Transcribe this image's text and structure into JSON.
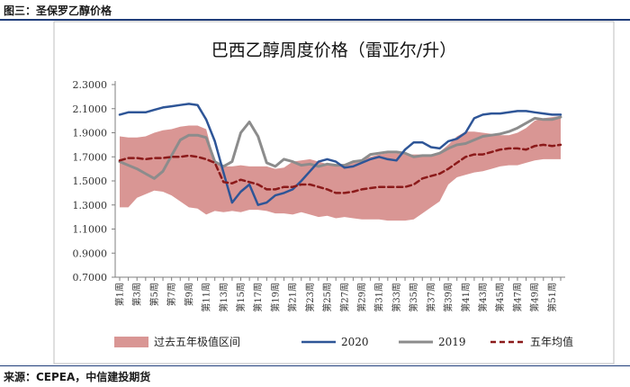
{
  "figure_caption": "图三：圣保罗乙醇价格",
  "source": "来源：CEPEA，中信建投期货",
  "colors": {
    "band": "#d99694",
    "s2020": "#2e5597",
    "s2019": "#8c8c8c",
    "avg": "#8b1a1a",
    "rule": "#1f3d7a"
  },
  "chart_data": {
    "type": "line",
    "title": "巴西乙醇周度价格（雷亚尔/升）",
    "ylim": [
      0.7,
      2.3
    ],
    "yticks": [
      "0.7000",
      "0.9000",
      "1.1000",
      "1.3000",
      "1.5000",
      "1.7000",
      "1.9000",
      "2.1000",
      "2.3000"
    ],
    "ytick_values": [
      0.7,
      0.9,
      1.1,
      1.3,
      1.5,
      1.7,
      1.9,
      2.1,
      2.3
    ],
    "x": [
      1,
      2,
      3,
      4,
      5,
      6,
      7,
      8,
      9,
      10,
      11,
      12,
      13,
      14,
      15,
      16,
      17,
      18,
      19,
      20,
      21,
      22,
      23,
      24,
      25,
      26,
      27,
      28,
      29,
      30,
      31,
      32,
      33,
      34,
      35,
      36,
      37,
      38,
      39,
      40,
      41,
      42,
      43,
      44,
      45,
      46,
      47,
      48,
      49,
      50,
      51,
      52
    ],
    "x_tick_labels": [
      "第1周",
      "第3周",
      "第5周",
      "第7周",
      "第9周",
      "第11周",
      "第13周",
      "第15周",
      "第17周",
      "第19周",
      "第21周",
      "第23周",
      "第25周",
      "第27周",
      "第29周",
      "第31周",
      "第33周",
      "第35周",
      "第37周",
      "第39周",
      "第41周",
      "第43周",
      "第45周",
      "第47周",
      "第49周",
      "第51周"
    ],
    "band": {
      "name": "过去五年极值区间",
      "upper": [
        1.87,
        1.86,
        1.86,
        1.87,
        1.9,
        1.92,
        1.93,
        1.95,
        1.96,
        1.96,
        1.93,
        1.66,
        1.62,
        1.62,
        1.63,
        1.62,
        1.62,
        1.62,
        1.6,
        1.61,
        1.66,
        1.67,
        1.68,
        1.66,
        1.64,
        1.63,
        1.64,
        1.66,
        1.68,
        1.7,
        1.72,
        1.73,
        1.73,
        1.72,
        1.72,
        1.72,
        1.72,
        1.74,
        1.8,
        1.87,
        1.91,
        1.91,
        1.9,
        1.89,
        1.88,
        1.88,
        1.9,
        1.94,
        2.0,
        2.02,
        2.03,
        2.04
      ],
      "lower": [
        1.28,
        1.28,
        1.36,
        1.39,
        1.42,
        1.41,
        1.38,
        1.33,
        1.28,
        1.27,
        1.22,
        1.25,
        1.24,
        1.25,
        1.24,
        1.26,
        1.26,
        1.25,
        1.23,
        1.23,
        1.22,
        1.24,
        1.22,
        1.2,
        1.21,
        1.19,
        1.2,
        1.19,
        1.18,
        1.18,
        1.18,
        1.17,
        1.17,
        1.17,
        1.18,
        1.23,
        1.28,
        1.33,
        1.47,
        1.53,
        1.55,
        1.57,
        1.58,
        1.6,
        1.62,
        1.63,
        1.63,
        1.65,
        1.67,
        1.68,
        1.68,
        1.68
      ]
    },
    "series": [
      {
        "name": "2020",
        "values": [
          2.05,
          2.07,
          2.07,
          2.07,
          2.09,
          2.11,
          2.12,
          2.13,
          2.14,
          2.13,
          2.01,
          1.83,
          1.57,
          1.32,
          1.41,
          1.47,
          1.3,
          1.32,
          1.38,
          1.4,
          1.43,
          1.5,
          1.58,
          1.66,
          1.68,
          1.66,
          1.61,
          1.62,
          1.65,
          1.68,
          1.7,
          1.68,
          1.67,
          1.76,
          1.82,
          1.82,
          1.78,
          1.77,
          1.83,
          1.85,
          1.9,
          2.02,
          2.05,
          2.06,
          2.06,
          2.07,
          2.08,
          2.08,
          2.07,
          2.06,
          2.05,
          2.05
        ]
      },
      {
        "name": "2019",
        "values": [
          1.66,
          1.63,
          1.6,
          1.56,
          1.52,
          1.58,
          1.71,
          1.84,
          1.88,
          1.88,
          1.86,
          1.66,
          1.62,
          1.66,
          1.9,
          1.99,
          1.87,
          1.65,
          1.62,
          1.68,
          1.66,
          1.63,
          1.64,
          1.62,
          1.64,
          1.63,
          1.63,
          1.66,
          1.67,
          1.72,
          1.73,
          1.74,
          1.74,
          1.73,
          1.7,
          1.71,
          1.71,
          1.73,
          1.77,
          1.8,
          1.81,
          1.84,
          1.87,
          1.88,
          1.89,
          1.91,
          1.94,
          1.98,
          2.02,
          2.01,
          2.01,
          2.03
        ]
      },
      {
        "name": "五年均值",
        "values": [
          1.67,
          1.69,
          1.69,
          1.68,
          1.69,
          1.69,
          1.7,
          1.7,
          1.71,
          1.7,
          1.68,
          1.65,
          1.49,
          1.48,
          1.51,
          1.49,
          1.47,
          1.43,
          1.43,
          1.45,
          1.45,
          1.47,
          1.47,
          1.45,
          1.43,
          1.4,
          1.4,
          1.41,
          1.43,
          1.44,
          1.45,
          1.45,
          1.45,
          1.45,
          1.47,
          1.52,
          1.54,
          1.56,
          1.6,
          1.65,
          1.7,
          1.72,
          1.72,
          1.74,
          1.76,
          1.77,
          1.77,
          1.76,
          1.79,
          1.8,
          1.79,
          1.8
        ]
      }
    ],
    "legend": [
      {
        "label": "过去五年极值区间",
        "kind": "band"
      },
      {
        "label": "2020",
        "kind": "s2020"
      },
      {
        "label": "2019",
        "kind": "s2019"
      },
      {
        "label": "五年均值",
        "kind": "avg"
      }
    ],
    "legend_position": "bottom",
    "grid": false
  }
}
